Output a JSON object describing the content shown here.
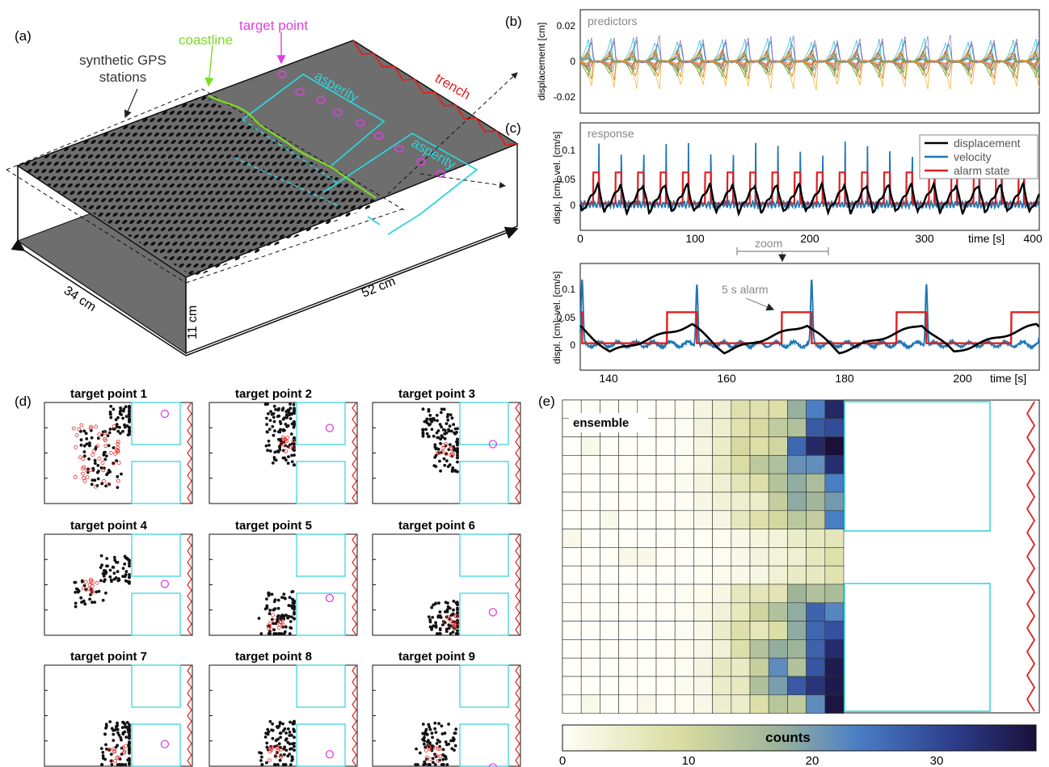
{
  "panel_labels": {
    "a": "(a)",
    "b": "(b)",
    "c": "(c)",
    "d": "(d)",
    "e": "(e)"
  },
  "panel_a": {
    "labels": {
      "gps": [
        "synthetic GPS",
        "stations"
      ],
      "coastline": "coastline",
      "target": "target point",
      "asperity1": "asperity",
      "asperity2": "asperity",
      "trench": "trench",
      "width": "34 cm",
      "length": "52 cm",
      "height": "11 cm"
    },
    "colors": {
      "coastline": "#7ddc1f",
      "target": "#e040e0",
      "asperity": "#2fd3d8",
      "trench": "#e02020",
      "plate": "#6e6e6e"
    }
  },
  "panel_b": {
    "label": "predictors",
    "ylabel": "displacement [cm]",
    "yticks": [
      "0.02",
      "0",
      "-0.02"
    ]
  },
  "panel_c": {
    "label": "response",
    "ylabel": "displ. [cm]; vel. [cm/s]",
    "yticks": [
      "0.1",
      "0.05",
      "0"
    ],
    "xticks": [
      "0",
      "100",
      "200",
      "300",
      "400"
    ],
    "xlabel": "time [s]",
    "legend": [
      "displacement",
      "velocity",
      "alarm state"
    ],
    "zoom": "zoom"
  },
  "panel_c_zoom": {
    "ylabel": "displ. [cm]; vel. [cm/s]",
    "yticks": [
      "0.1",
      "0.05",
      "0"
    ],
    "xticks": [
      "140",
      "160",
      "180",
      "200"
    ],
    "xlabel": "time [s]",
    "annotation": "5 s alarm"
  },
  "panel_d": {
    "titles": [
      "target point 1",
      "target point 2",
      "target point 3",
      "target point 4",
      "target point 5",
      "target point 6",
      "target point 7",
      "target point 8",
      "target point 9"
    ]
  },
  "panel_e": {
    "label": "ensemble",
    "colorbar_label": "counts",
    "colorbar_ticks": [
      "0",
      "10",
      "20",
      "30"
    ]
  },
  "chart_data": [
    {
      "type": "line",
      "panel": "c",
      "series": [
        {
          "name": "displacement",
          "color": "#000000"
        },
        {
          "name": "velocity",
          "color": "#1f77b4"
        },
        {
          "name": "alarm state",
          "color": "#e02020"
        }
      ],
      "xlim": [
        0,
        400
      ],
      "ylim": [
        -0.01,
        0.14
      ],
      "xlabel": "time [s]",
      "ylabel": "displ. [cm]; vel. [cm/s]",
      "cycle_period_s": 19.5
    },
    {
      "type": "line",
      "panel": "c-zoom",
      "xlim": [
        135,
        213
      ],
      "ylim": [
        -0.01,
        0.14
      ],
      "event_times_s": [
        154,
        173.5,
        193,
        212
      ],
      "alarm_level": 0.062,
      "alarm_duration_s": 5
    },
    {
      "type": "heatmap",
      "panel": "e",
      "colorbar_range": [
        0,
        38
      ],
      "colorbar_label": "counts"
    }
  ]
}
